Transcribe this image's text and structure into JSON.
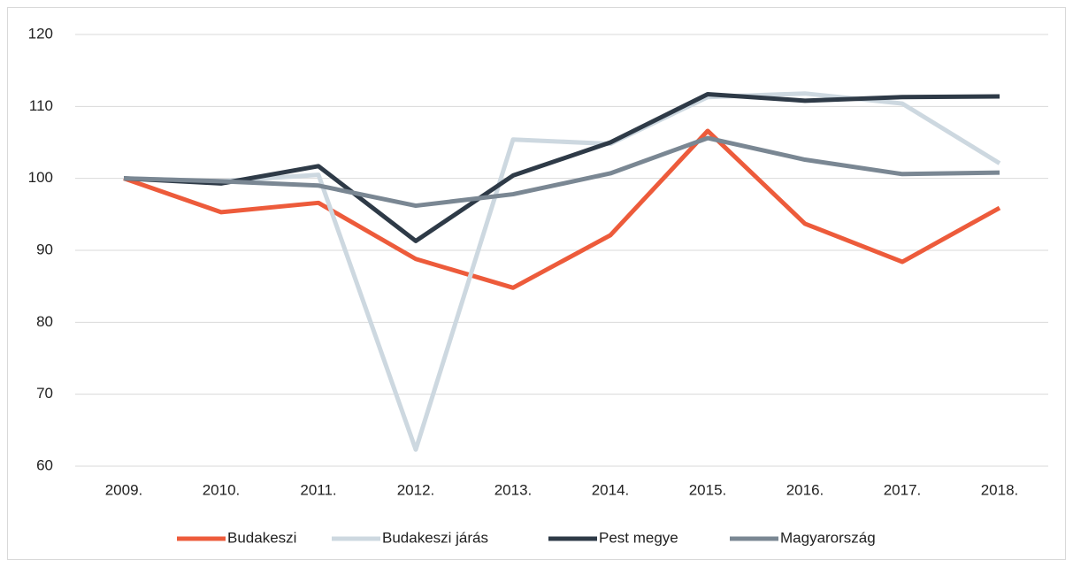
{
  "chart_data": {
    "type": "line",
    "categories": [
      "2009.",
      "2010.",
      "2011.",
      "2012.",
      "2013.",
      "2014.",
      "2015.",
      "2016.",
      "2017.",
      "2018."
    ],
    "series": [
      {
        "name": "Budakeszi",
        "color": "#ed5b3b",
        "values": [
          100,
          95.3,
          96.6,
          88.8,
          84.8,
          92.1,
          106.6,
          93.7,
          88.4,
          95.9
        ]
      },
      {
        "name": "Budakeszi járás",
        "color": "#cdd8e0",
        "values": [
          100,
          99.6,
          100.5,
          62.3,
          105.4,
          104.8,
          111.3,
          111.8,
          110.4,
          102.1
        ]
      },
      {
        "name": "Pest megye",
        "color": "#2e3a47",
        "values": [
          100,
          99.3,
          101.7,
          91.3,
          100.4,
          105.0,
          111.7,
          110.8,
          111.3,
          111.4
        ]
      },
      {
        "name": "Magyarország",
        "color": "#7a8793",
        "values": [
          100,
          99.6,
          99.0,
          96.2,
          97.8,
          100.7,
          105.6,
          102.6,
          100.6,
          100.8
        ]
      }
    ],
    "ylim": [
      60,
      120
    ],
    "yticks": [
      60,
      70,
      80,
      90,
      100,
      110,
      120
    ],
    "grid": true,
    "legend": "bottom"
  }
}
